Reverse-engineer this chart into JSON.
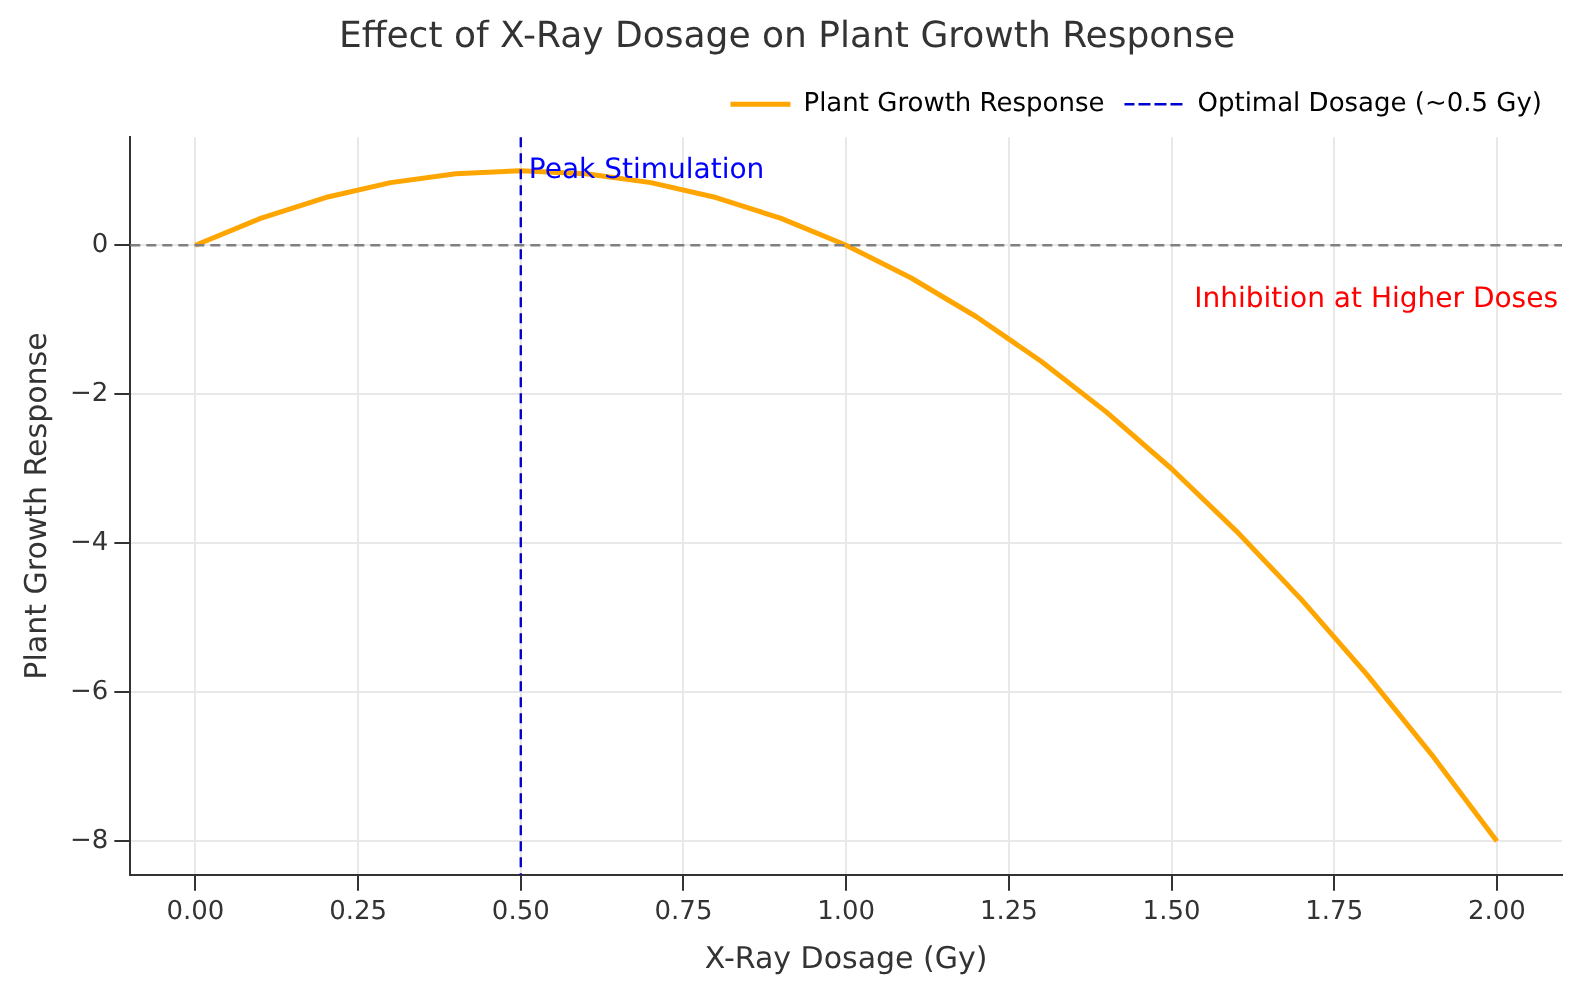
{
  "chart_data": {
    "type": "line",
    "title": "Effect of X-Ray Dosage on Plant Growth Response",
    "xlabel": "X-Ray Dosage (Gy)",
    "ylabel": "Plant Growth Response",
    "series": [
      {
        "name": "Plant Growth Response",
        "color": "#ffa500",
        "x": [
          0,
          0.1,
          0.2,
          0.3,
          0.4,
          0.5,
          0.6,
          0.7,
          0.8,
          0.9,
          1,
          1.1,
          1.2,
          1.3,
          1.4,
          1.5,
          1.6,
          1.7,
          1.8,
          1.9,
          2
        ],
        "values": [
          0,
          0.36,
          0.64,
          0.84,
          0.96,
          1,
          0.96,
          0.84,
          0.64,
          0.36,
          0,
          -0.44,
          -0.96,
          -1.56,
          -2.24,
          -3,
          -3.84,
          -4.76,
          -5.76,
          -6.84,
          -8
        ]
      }
    ],
    "xlim": [
      -0.1,
      2.1
    ],
    "ylim": [
      -8.45,
      1.45
    ],
    "xticks": [
      {
        "value": 0,
        "label": "0.00"
      },
      {
        "value": 0.25,
        "label": "0.25"
      },
      {
        "value": 0.5,
        "label": "0.50"
      },
      {
        "value": 0.75,
        "label": "0.75"
      },
      {
        "value": 1,
        "label": "1.00"
      },
      {
        "value": 1.25,
        "label": "1.25"
      },
      {
        "value": 1.5,
        "label": "1.50"
      },
      {
        "value": 1.75,
        "label": "1.75"
      },
      {
        "value": 2,
        "label": "2.00"
      }
    ],
    "yticks": [
      {
        "value": -8,
        "label": "−8"
      },
      {
        "value": -6,
        "label": "−6"
      },
      {
        "value": -4,
        "label": "−4"
      },
      {
        "value": -2,
        "label": "−2"
      },
      0
    ],
    "ref_lines": [
      {
        "axis": "x",
        "value": 0.5,
        "label": "Optimal Dosage (~0.5 Gy)",
        "color": "#0000cc",
        "line_style": "dashed"
      },
      {
        "axis": "y",
        "value": 0,
        "color": "#808080",
        "line_style": "dashed"
      }
    ],
    "annotations": [
      {
        "text": "Peak Stimulation",
        "x": 0.5,
        "y": 1
      },
      "Inhibition at Higher Doses"
    ],
    "grid": true,
    "legend": "top right",
    "marker": "none",
    "line_style": "solid"
  }
}
